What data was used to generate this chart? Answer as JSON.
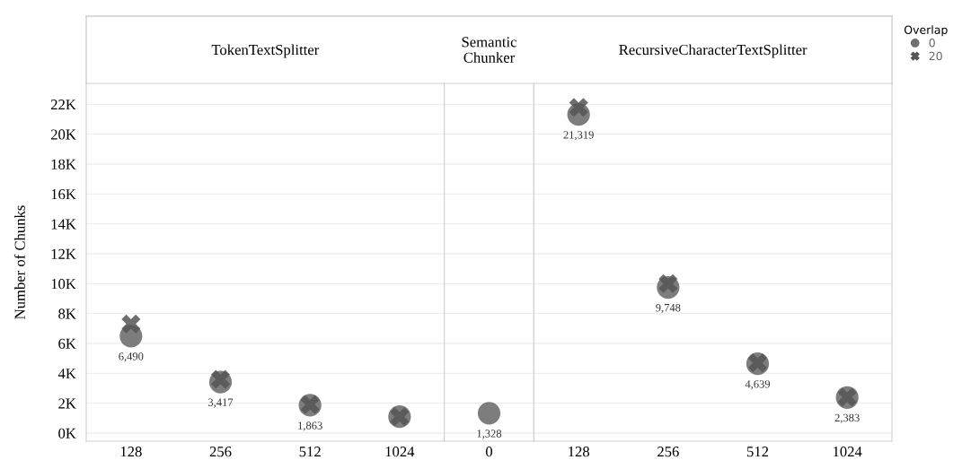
{
  "chart_data": [
    {
      "type": "scatter",
      "title": "TokenTextSplitter",
      "ylabel": "Number of Chunks",
      "categories": [
        "128",
        "256",
        "512",
        "1024"
      ],
      "ylim": [
        -540,
        23400
      ],
      "yticks": [
        {
          "value": 0,
          "label": "0K"
        },
        {
          "value": 2000,
          "label": "2K"
        },
        {
          "value": 4000,
          "label": "4K"
        },
        {
          "value": 6000,
          "label": "6K"
        },
        {
          "value": 8000,
          "label": "8K"
        },
        {
          "value": 10000,
          "label": "10K"
        },
        {
          "value": 12000,
          "label": "12K"
        },
        {
          "value": 14000,
          "label": "14K"
        },
        {
          "value": 16000,
          "label": "16K"
        },
        {
          "value": 18000,
          "label": "18K"
        },
        {
          "value": 20000,
          "label": "20K"
        },
        {
          "value": 22000,
          "label": "22K"
        }
      ],
      "grid": "y",
      "series": [
        {
          "color": "#6f6f6f",
          "marker": "circle",
          "values": [
            6490,
            3417,
            1863,
            1100
          ],
          "value_labels": [
            "6,490",
            "3,417",
            "1,863",
            null
          ]
        },
        {
          "color": "#555555",
          "marker": "cross",
          "values": [
            7300,
            3600,
            1900,
            1100
          ]
        }
      ]
    },
    {
      "type": "scatter",
      "title": "Semantic\nChunker",
      "categories": [
        "0"
      ],
      "ylim": [
        -540,
        23400
      ],
      "tick_labels": "x",
      "grid": "y",
      "series": [
        {
          "color": "#6f6f6f",
          "marker": "circle",
          "values": [
            1328
          ],
          "value_labels": [
            "1,328"
          ]
        }
      ]
    },
    {
      "type": "scatter",
      "title": "RecursiveCharacterTextSplitter",
      "categories": [
        "128",
        "256",
        "512",
        "1024"
      ],
      "ylim": [
        -540,
        23400
      ],
      "tick_labels": "x",
      "grid": "y",
      "legend": "top right",
      "legend_title": "Overlap",
      "series": [
        {
          "name": "0",
          "color": "#6f6f6f",
          "marker": "circle",
          "values": [
            21319,
            9748,
            4639,
            2383
          ],
          "value_labels": [
            "21,319",
            "9,748",
            "4,639",
            "2,383"
          ]
        },
        {
          "name": "20",
          "color": "#555555",
          "marker": "cross",
          "values": [
            21800,
            10000,
            4700,
            2400
          ]
        }
      ]
    }
  ]
}
